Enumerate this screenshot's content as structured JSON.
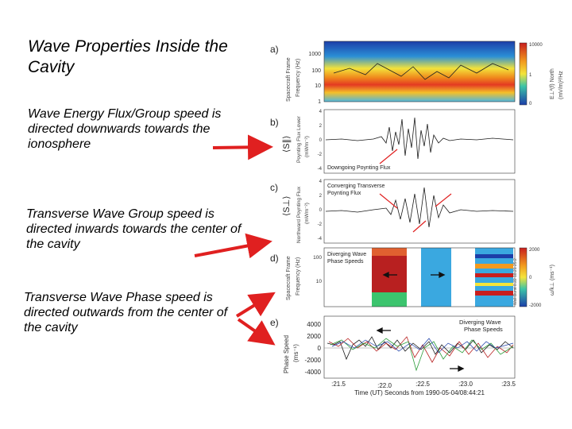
{
  "slide": {
    "title": "Wave Properties Inside the Cavity",
    "notes": [
      "Wave Energy Flux/Group speed is directed downwards towards the ionosphere",
      "Transverse Wave Group speed is directed inwards towards the center of the cavity",
      "Transverse Wave Phase speed is directed outwards from the center of the cavity"
    ]
  },
  "figure": {
    "panels": {
      "a": {
        "letter": "a)",
        "ylabel_1": "Spacecraft Frame",
        "ylabel_2": "Frequency (Hz)",
        "yticks": [
          "1000",
          "100",
          "10",
          "1"
        ],
        "colorbar_label_1": "E⊥²(f) North",
        "colorbar_label_2": "(mV/m)²/Hz",
        "colorbar_ticks": [
          "10000",
          "1",
          "0"
        ]
      },
      "b": {
        "letter": "b)",
        "ylabel_main": "⟨S∥⟩",
        "ylabel_1": "Poynting Flux Lower",
        "ylabel_2": "(mWm⁻²)",
        "yticks": [
          "4",
          "2",
          "0",
          "-2",
          "-4"
        ],
        "annotation": "Downgoing Poynting Flux"
      },
      "c": {
        "letter": "c)",
        "ylabel_main": "⟨S⊥⟩",
        "ylabel_1": "Northward Poynting Flux",
        "ylabel_2": "(mWm⁻²)",
        "yticks": [
          "4",
          "2",
          "0",
          "-2",
          "-4"
        ],
        "annotation_1": "Converging Transverse",
        "annotation_2": "Poynting Flux"
      },
      "d": {
        "letter": "d)",
        "ylabel_1": "Spacecraft Frame",
        "ylabel_2": "Frequency (Hz)",
        "yticks": [
          "100",
          "10"
        ],
        "annotation_1": "Diverging Wave",
        "annotation_2": "Phase Speeds",
        "colorbar_label_1": "ω/k⊥ (ms⁻¹)",
        "colorbar_label_2": "Wall Burst 8.22 18.21 25:2",
        "colorbar_ticks": [
          "2000",
          "0",
          "-2000"
        ]
      },
      "e": {
        "letter": "e)",
        "ylabel_1": "Phase Speed",
        "ylabel_2": "(ms⁻¹)",
        "yticks": [
          "4000",
          "2000",
          "0",
          "-2000",
          "-4000"
        ],
        "annotation_1": "Diverging Wave",
        "annotation_2": "Phase Speeds",
        "xticks": [
          ":21.5",
          ":22.0",
          ":22.5",
          ":23.0",
          ":23.5"
        ],
        "xlabel": "Time (UT) Seconds from 1990-05-04/08:44:21"
      }
    },
    "colors": {
      "arrow_red": "#e02020",
      "trace": "#1a1a1a",
      "wave_blue": "#3aa8e0",
      "wave_red": "#b82020",
      "wave_green": "#2e9e3c"
    }
  }
}
